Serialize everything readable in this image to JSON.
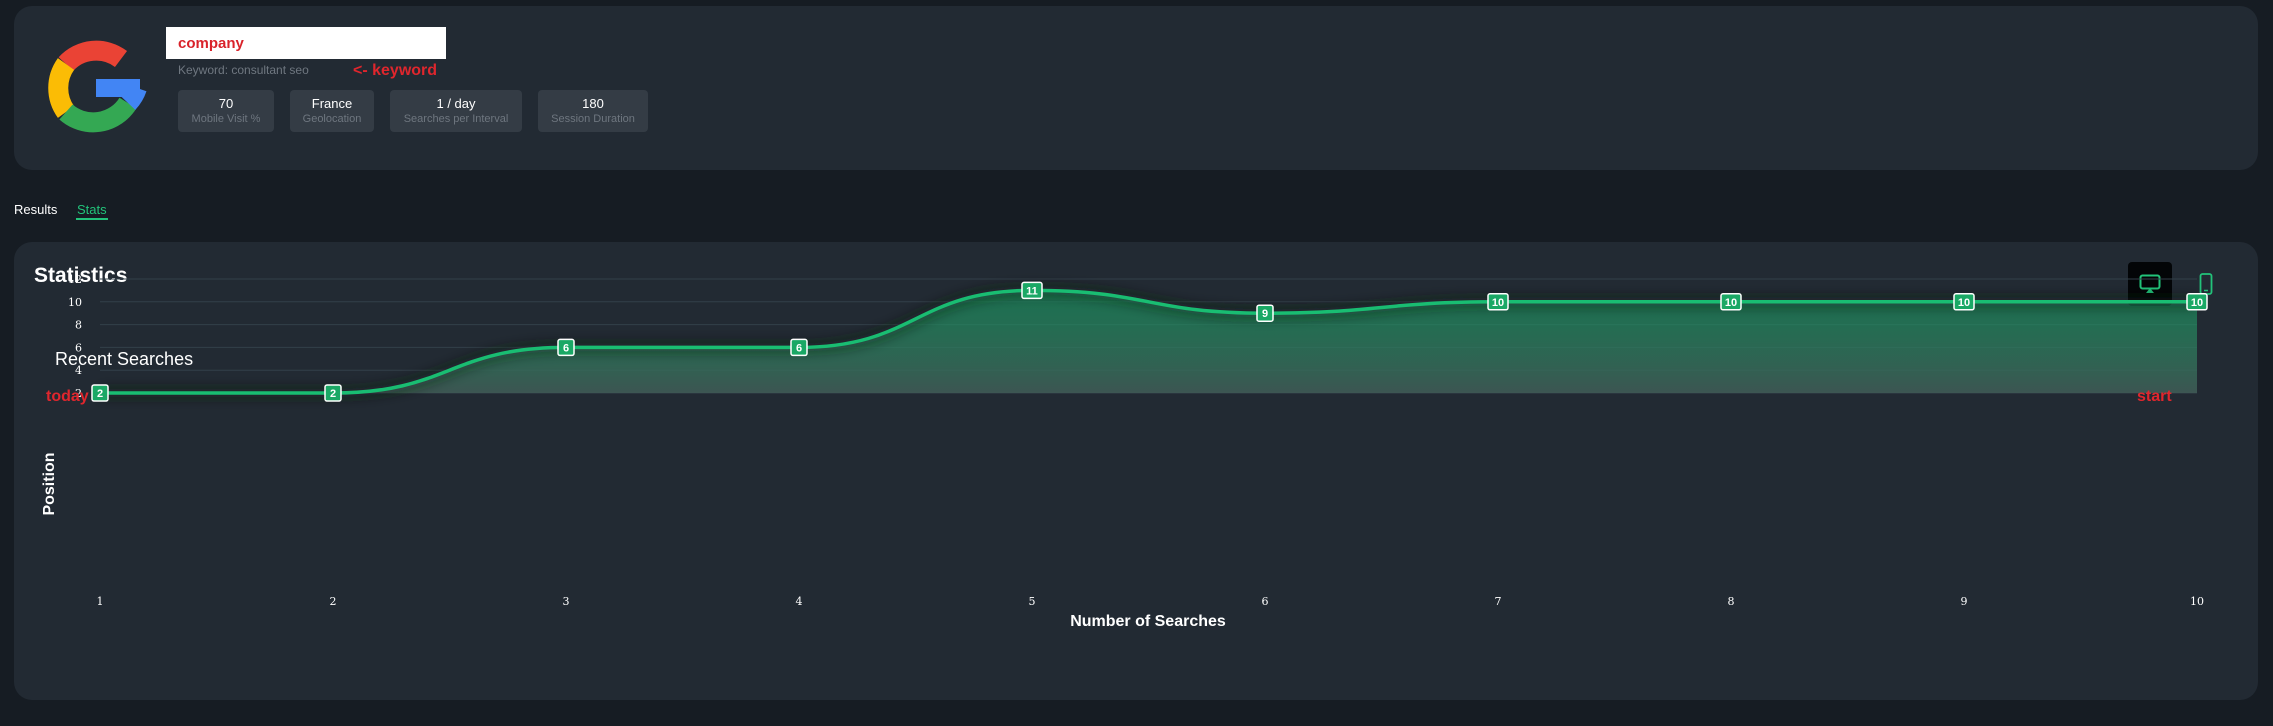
{
  "header": {
    "company_value": "company",
    "keyword_label": "Keyword: consultant seo",
    "keyword_annotation": "<- keyword",
    "logo_icon": "google-g-icon",
    "metrics": [
      {
        "value": "70",
        "label": "Mobile Visit %"
      },
      {
        "value": "France",
        "label": "Geolocation"
      },
      {
        "value": "1 / day",
        "label": "Searches per Interval"
      },
      {
        "value": "180",
        "label": "Session Duration"
      }
    ]
  },
  "tabs": [
    {
      "label": "Results",
      "active": false
    },
    {
      "label": "Stats",
      "active": true
    }
  ],
  "stats": {
    "title": "Statistics",
    "desktop_icon": "desktop-icon",
    "mobile_icon": "mobile-icon",
    "annotation_left": "today",
    "annotation_right": "start"
  },
  "colors": {
    "accent": "#22c37a",
    "annotation_red": "#e0262d",
    "background": "#161c23",
    "card": "#222a33"
  },
  "chart_data": {
    "type": "area",
    "title": "Recent Searches",
    "xlabel": "Number of Searches",
    "ylabel": "Position",
    "x": [
      1,
      2,
      3,
      4,
      5,
      6,
      7,
      8,
      9,
      10
    ],
    "series": [
      {
        "values": [
          2,
          2,
          6,
          6,
          11,
          9,
          10,
          10,
          10,
          10
        ]
      }
    ],
    "yticks": [
      2,
      4,
      6,
      8,
      10,
      12
    ],
    "ylim": [
      2,
      12
    ],
    "xlim": [
      1,
      10
    ],
    "grid": true,
    "data_labels": true
  }
}
